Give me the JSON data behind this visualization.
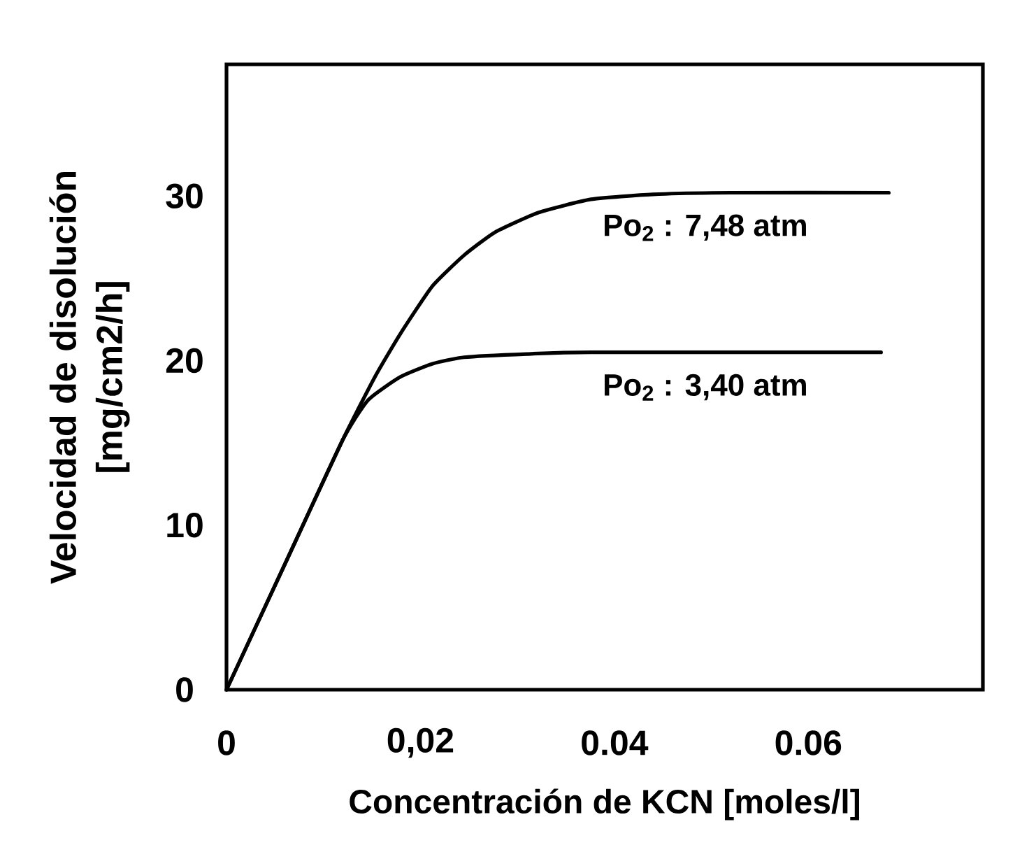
{
  "chart_data": {
    "type": "line",
    "xlabel": "Concentración de KCN [moles/l]",
    "ylabel": "Velocidad de disolución [mg/cm2/h]",
    "xlim": [
      0,
      0.078
    ],
    "ylim": [
      0,
      38
    ],
    "xticks": [
      0,
      {
        "value": 0.02,
        "label": "0,02"
      },
      0.04,
      0.06
    ],
    "yticks": [
      0,
      10,
      20,
      30
    ],
    "marker": "none",
    "line_style": "solid",
    "series": [
      {
        "name": "Po$_{2}$ : 7,48 atm",
        "color": "#000000",
        "x": [
          0,
          0.006,
          0.012,
          0.0153,
          0.0179,
          0.0212,
          0.0245,
          0.0277,
          0.0322,
          0.0376,
          0.044,
          0.052,
          0.0683
        ],
        "values": [
          0,
          7.6,
          15.2,
          19.0,
          21.6,
          24.5,
          26.4,
          27.8,
          29.0,
          29.8,
          30.1,
          30.2,
          30.2
        ]
      },
      {
        "name": "Po$_{2}$ : 3,40 atm",
        "color": "#000000",
        "x": [
          0,
          0.006,
          0.012,
          0.0146,
          0.0179,
          0.0212,
          0.0245,
          0.031,
          0.0376,
          0.0675
        ],
        "values": [
          0,
          7.6,
          15.2,
          17.6,
          19.0,
          19.8,
          20.2,
          20.4,
          20.5,
          20.5
        ]
      }
    ]
  }
}
